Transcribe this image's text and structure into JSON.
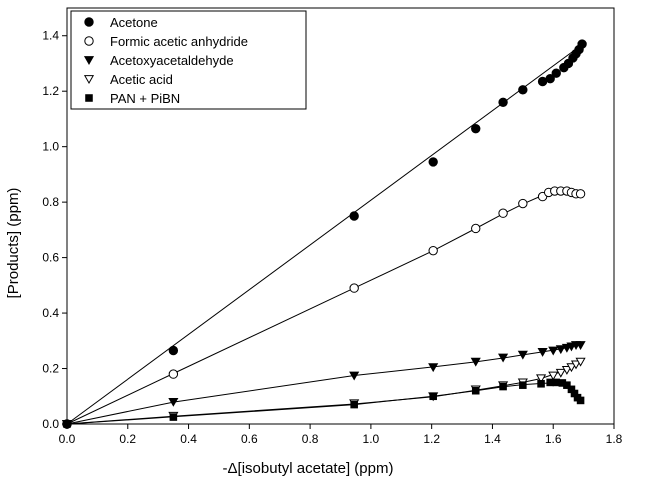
{
  "chart_data": {
    "type": "scatter",
    "xlabel": "-Δ[isobutyl acetate] (ppm)",
    "ylabel": "[Products] (ppm)",
    "xlim": [
      0,
      1.8
    ],
    "ylim": [
      0,
      1.5
    ],
    "xticks": [
      "0.0",
      "0.2",
      "0.4",
      "0.6",
      "0.8",
      "1.0",
      "1.2",
      "1.4",
      "1.6",
      "1.8"
    ],
    "yticks": [
      "0.0",
      "0.2",
      "0.4",
      "0.6",
      "0.8",
      "1.0",
      "1.2",
      "1.4"
    ],
    "legend_position": "top-left",
    "grid": false,
    "series": [
      {
        "name": "Acetone",
        "marker": "filled-circle",
        "points": [
          [
            0.0,
            0.0
          ],
          [
            0.35,
            0.265
          ],
          [
            0.945,
            0.75
          ],
          [
            1.205,
            0.945
          ],
          [
            1.345,
            1.065
          ],
          [
            1.435,
            1.16
          ],
          [
            1.5,
            1.205
          ],
          [
            1.565,
            1.235
          ],
          [
            1.59,
            1.245
          ],
          [
            1.61,
            1.265
          ],
          [
            1.635,
            1.285
          ],
          [
            1.65,
            1.3
          ],
          [
            1.665,
            1.32
          ],
          [
            1.675,
            1.335
          ],
          [
            1.685,
            1.35
          ],
          [
            1.695,
            1.37
          ]
        ],
        "fit": [
          [
            0.0,
            0.0
          ],
          [
            1.7,
            1.372
          ]
        ]
      },
      {
        "name": "Formic acetic anhydride",
        "marker": "open-circle",
        "points": [
          [
            0.0,
            0.0
          ],
          [
            0.35,
            0.18
          ],
          [
            0.945,
            0.49
          ],
          [
            1.205,
            0.625
          ],
          [
            1.345,
            0.705
          ],
          [
            1.435,
            0.76
          ],
          [
            1.5,
            0.795
          ],
          [
            1.565,
            0.82
          ],
          [
            1.585,
            0.835
          ],
          [
            1.605,
            0.84
          ],
          [
            1.625,
            0.84
          ],
          [
            1.645,
            0.84
          ],
          [
            1.66,
            0.835
          ],
          [
            1.675,
            0.83
          ],
          [
            1.69,
            0.83
          ]
        ],
        "fit": [
          [
            0.0,
            0.0
          ],
          [
            0.35,
            0.182
          ],
          [
            0.945,
            0.49
          ],
          [
            1.205,
            0.625
          ],
          [
            1.345,
            0.705
          ],
          [
            1.435,
            0.758
          ],
          [
            1.5,
            0.793
          ],
          [
            1.56,
            0.822
          ],
          [
            1.6,
            0.836
          ],
          [
            1.64,
            0.838
          ],
          [
            1.67,
            0.832
          ],
          [
            1.695,
            0.828
          ]
        ]
      },
      {
        "name": "Acetoxyacetaldehyde",
        "marker": "filled-triangle-down",
        "points": [
          [
            0.0,
            0.0
          ],
          [
            0.35,
            0.08
          ],
          [
            0.945,
            0.175
          ],
          [
            1.205,
            0.205
          ],
          [
            1.345,
            0.225
          ],
          [
            1.435,
            0.24
          ],
          [
            1.5,
            0.25
          ],
          [
            1.565,
            0.26
          ],
          [
            1.6,
            0.265
          ],
          [
            1.625,
            0.27
          ],
          [
            1.645,
            0.275
          ],
          [
            1.66,
            0.28
          ],
          [
            1.675,
            0.285
          ],
          [
            1.69,
            0.285
          ]
        ],
        "fit": [
          [
            0.0,
            0.0
          ],
          [
            0.35,
            0.079
          ],
          [
            0.945,
            0.175
          ],
          [
            1.205,
            0.206
          ],
          [
            1.345,
            0.224
          ],
          [
            1.435,
            0.238
          ],
          [
            1.5,
            0.249
          ],
          [
            1.565,
            0.26
          ],
          [
            1.63,
            0.272
          ],
          [
            1.695,
            0.287
          ]
        ]
      },
      {
        "name": "Acetic acid",
        "marker": "open-triangle-down",
        "points": [
          [
            0.0,
            0.0
          ],
          [
            0.35,
            0.03
          ],
          [
            0.945,
            0.075
          ],
          [
            1.205,
            0.1
          ],
          [
            1.345,
            0.125
          ],
          [
            1.435,
            0.14
          ],
          [
            1.5,
            0.15
          ],
          [
            1.56,
            0.165
          ],
          [
            1.6,
            0.175
          ],
          [
            1.625,
            0.185
          ],
          [
            1.645,
            0.195
          ],
          [
            1.66,
            0.205
          ],
          [
            1.675,
            0.215
          ],
          [
            1.69,
            0.225
          ]
        ],
        "fit": [
          [
            0.0,
            0.0
          ],
          [
            0.35,
            0.028
          ],
          [
            0.945,
            0.072
          ],
          [
            1.205,
            0.098
          ],
          [
            1.345,
            0.122
          ],
          [
            1.435,
            0.138
          ],
          [
            1.5,
            0.15
          ],
          [
            1.56,
            0.164
          ],
          [
            1.62,
            0.186
          ],
          [
            1.66,
            0.206
          ],
          [
            1.695,
            0.228
          ]
        ]
      },
      {
        "name": "PAN + PiBN",
        "marker": "filled-square",
        "points": [
          [
            0.0,
            0.0
          ],
          [
            0.35,
            0.025
          ],
          [
            0.945,
            0.07
          ],
          [
            1.205,
            0.1
          ],
          [
            1.345,
            0.12
          ],
          [
            1.435,
            0.135
          ],
          [
            1.5,
            0.14
          ],
          [
            1.56,
            0.145
          ],
          [
            1.59,
            0.15
          ],
          [
            1.61,
            0.15
          ],
          [
            1.63,
            0.148
          ],
          [
            1.645,
            0.14
          ],
          [
            1.66,
            0.125
          ],
          [
            1.67,
            0.11
          ],
          [
            1.68,
            0.095
          ],
          [
            1.69,
            0.085
          ]
        ],
        "fit": [
          [
            0.0,
            0.0
          ],
          [
            0.35,
            0.026
          ],
          [
            0.945,
            0.07
          ],
          [
            1.205,
            0.1
          ],
          [
            1.345,
            0.12
          ],
          [
            1.435,
            0.134
          ],
          [
            1.5,
            0.142
          ],
          [
            1.56,
            0.146
          ],
          [
            1.6,
            0.149
          ],
          [
            1.63,
            0.146
          ],
          [
            1.66,
            0.126
          ],
          [
            1.69,
            0.086
          ]
        ]
      }
    ]
  }
}
